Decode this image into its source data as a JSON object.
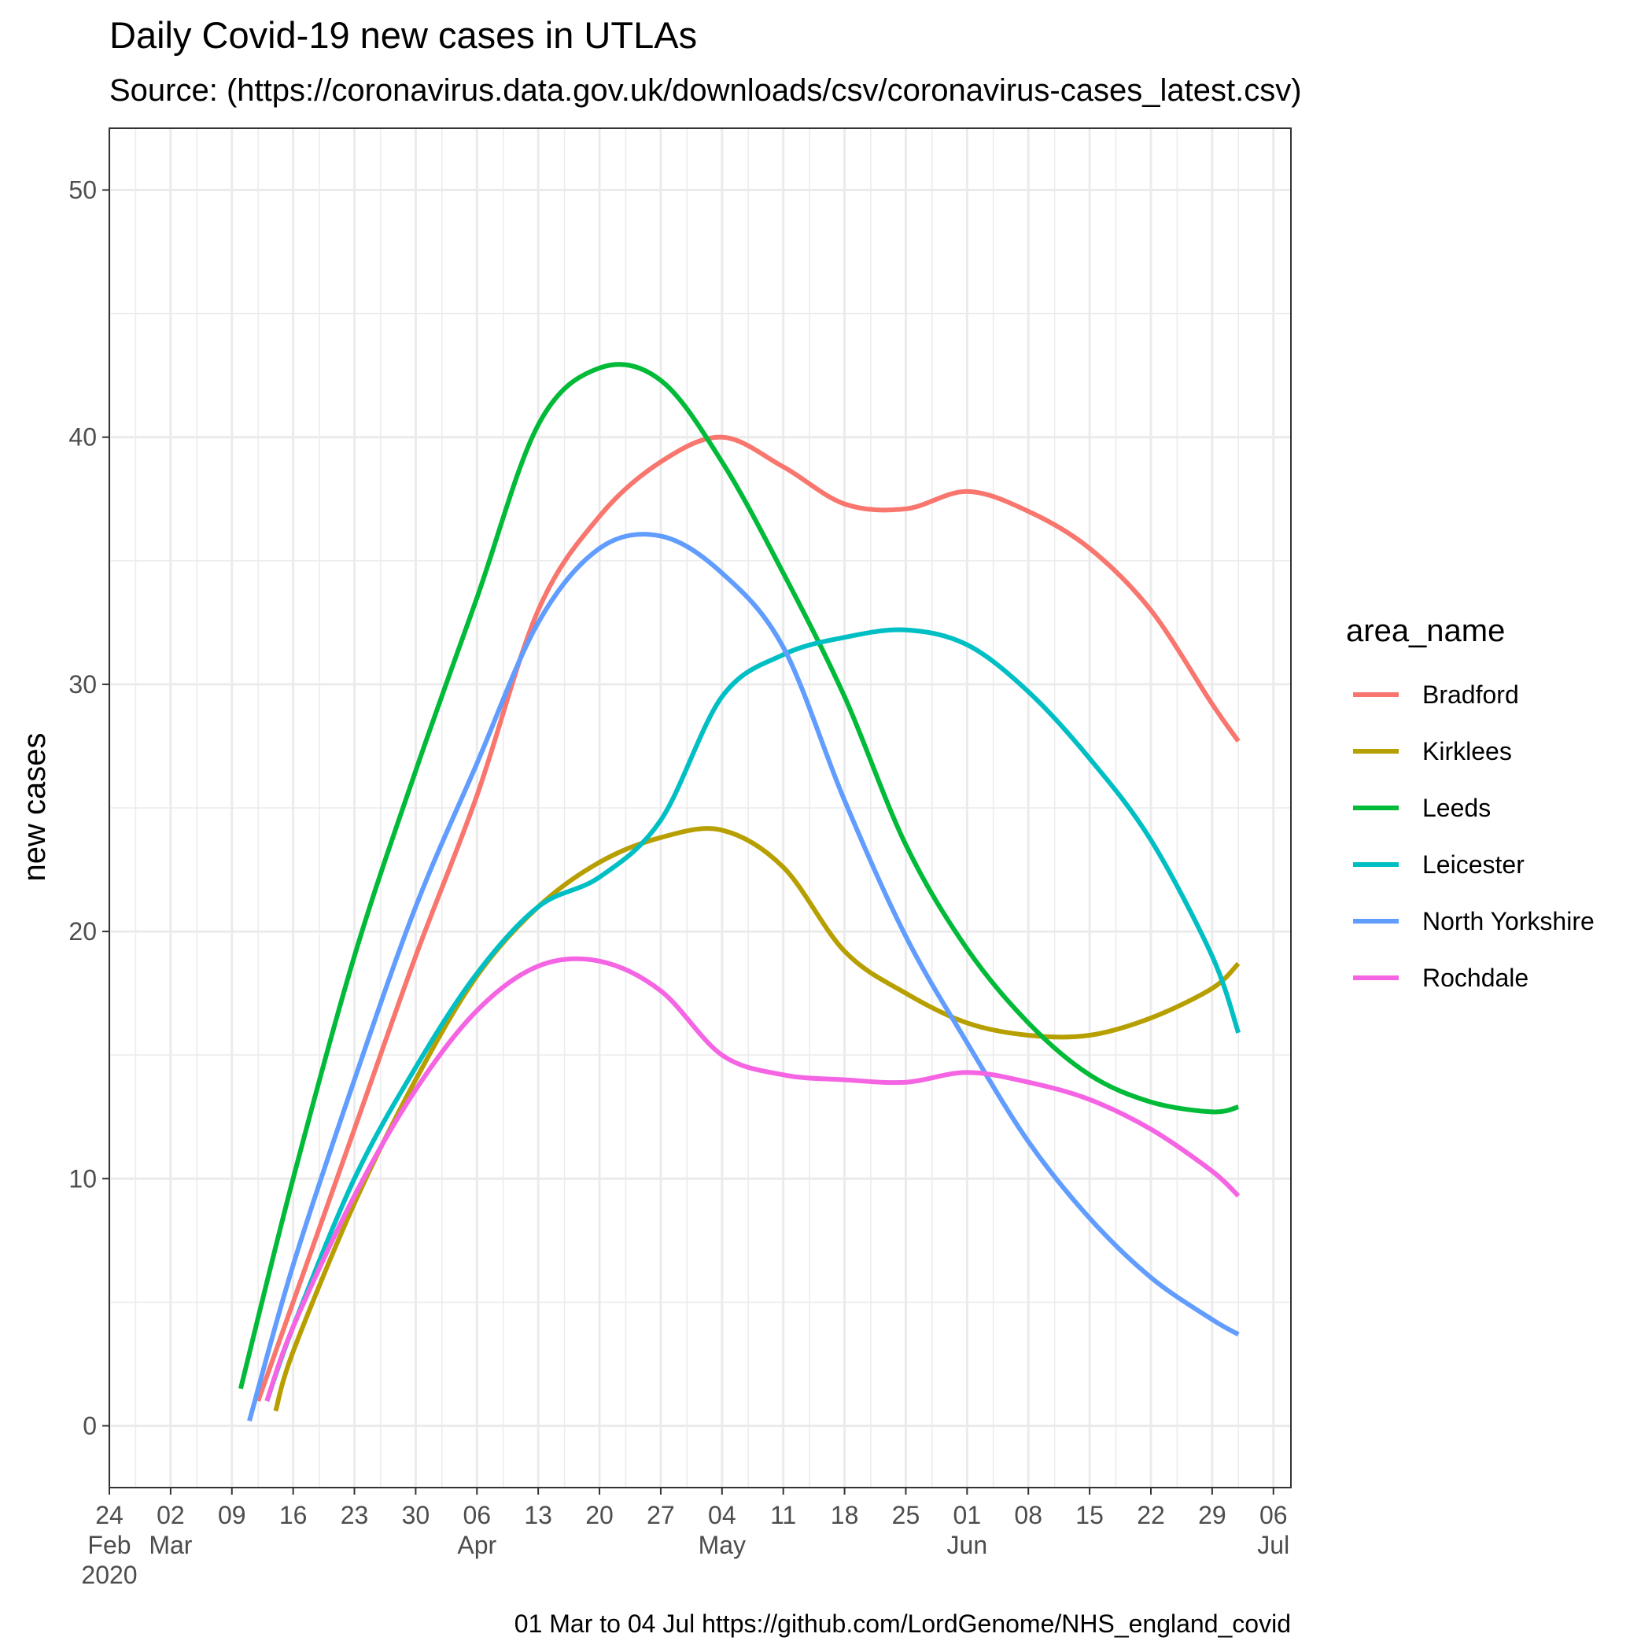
{
  "chart_data": {
    "type": "line",
    "title": "Daily Covid-19 new cases in UTLAs",
    "subtitle": "Source: (https://coronavirus.data.gov.uk/downloads/csv/coronavirus-cases_latest.csv)",
    "caption": "01 Mar to 04 Jul https://github.com/LordGenome/NHS_england_covid",
    "xlabel": "",
    "ylabel": "new cases",
    "xlim": [
      "2020-02-24",
      "2020-07-08"
    ],
    "ylim": [
      -2.5,
      52.5
    ],
    "y_ticks": [
      0,
      10,
      20,
      30,
      40,
      50
    ],
    "x_ticks": [
      {
        "date": "2020-02-24",
        "label": "24",
        "month": "Feb",
        "year": "2020"
      },
      {
        "date": "2020-03-02",
        "label": "02",
        "month": "Mar"
      },
      {
        "date": "2020-03-09",
        "label": "09"
      },
      {
        "date": "2020-03-16",
        "label": "16"
      },
      {
        "date": "2020-03-23",
        "label": "23"
      },
      {
        "date": "2020-03-30",
        "label": "30"
      },
      {
        "date": "2020-04-06",
        "label": "06",
        "month": "Apr"
      },
      {
        "date": "2020-04-13",
        "label": "13"
      },
      {
        "date": "2020-04-20",
        "label": "20"
      },
      {
        "date": "2020-04-27",
        "label": "27"
      },
      {
        "date": "2020-05-04",
        "label": "04",
        "month": "May"
      },
      {
        "date": "2020-05-11",
        "label": "11"
      },
      {
        "date": "2020-05-18",
        "label": "18"
      },
      {
        "date": "2020-05-25",
        "label": "25"
      },
      {
        "date": "2020-06-01",
        "label": "01",
        "month": "Jun"
      },
      {
        "date": "2020-06-08",
        "label": "08"
      },
      {
        "date": "2020-06-15",
        "label": "15"
      },
      {
        "date": "2020-06-22",
        "label": "22"
      },
      {
        "date": "2020-06-29",
        "label": "29"
      },
      {
        "date": "2020-07-06",
        "label": "06",
        "month": "Jul"
      }
    ],
    "grid": true,
    "legend": {
      "title": "area_name",
      "position": "right"
    },
    "series": [
      {
        "name": "Bradford",
        "color": "#F8766D",
        "points": [
          [
            "2020-03-12",
            1
          ],
          [
            "2020-03-16",
            5
          ],
          [
            "2020-03-23",
            12
          ],
          [
            "2020-03-30",
            19
          ],
          [
            "2020-04-06",
            25.5
          ],
          [
            "2020-04-13",
            33
          ],
          [
            "2020-04-20",
            36.8
          ],
          [
            "2020-04-27",
            39
          ],
          [
            "2020-05-04",
            40
          ],
          [
            "2020-05-11",
            38.8
          ],
          [
            "2020-05-18",
            37.3
          ],
          [
            "2020-05-25",
            37.1
          ],
          [
            "2020-06-01",
            37.8
          ],
          [
            "2020-06-08",
            37
          ],
          [
            "2020-06-15",
            35.5
          ],
          [
            "2020-06-22",
            33
          ],
          [
            "2020-06-29",
            29.2
          ],
          [
            "2020-07-02",
            27.7
          ]
        ]
      },
      {
        "name": "Kirklees",
        "color": "#B79F00",
        "points": [
          [
            "2020-03-14",
            0.6
          ],
          [
            "2020-03-16",
            3
          ],
          [
            "2020-03-23",
            9
          ],
          [
            "2020-03-30",
            14
          ],
          [
            "2020-04-06",
            18.2
          ],
          [
            "2020-04-13",
            21
          ],
          [
            "2020-04-20",
            22.8
          ],
          [
            "2020-04-27",
            23.8
          ],
          [
            "2020-05-04",
            24.1
          ],
          [
            "2020-05-11",
            22.6
          ],
          [
            "2020-05-18",
            19.2
          ],
          [
            "2020-05-25",
            17.5
          ],
          [
            "2020-06-01",
            16.3
          ],
          [
            "2020-06-08",
            15.8
          ],
          [
            "2020-06-15",
            15.8
          ],
          [
            "2020-06-22",
            16.5
          ],
          [
            "2020-06-29",
            17.7
          ],
          [
            "2020-07-02",
            18.7
          ]
        ]
      },
      {
        "name": "Leeds",
        "color": "#00BA38",
        "points": [
          [
            "2020-03-10",
            1.5
          ],
          [
            "2020-03-16",
            10
          ],
          [
            "2020-03-23",
            19
          ],
          [
            "2020-03-30",
            26.5
          ],
          [
            "2020-04-06",
            33.5
          ],
          [
            "2020-04-13",
            40.5
          ],
          [
            "2020-04-20",
            42.8
          ],
          [
            "2020-04-27",
            42.3
          ],
          [
            "2020-05-04",
            39
          ],
          [
            "2020-05-11",
            34.5
          ],
          [
            "2020-05-18",
            29.5
          ],
          [
            "2020-05-25",
            23.5
          ],
          [
            "2020-06-01",
            19.3
          ],
          [
            "2020-06-08",
            16.3
          ],
          [
            "2020-06-15",
            14.2
          ],
          [
            "2020-06-22",
            13.1
          ],
          [
            "2020-06-29",
            12.7
          ],
          [
            "2020-07-02",
            12.9
          ]
        ]
      },
      {
        "name": "Leicester",
        "color": "#00BFC4",
        "points": [
          [
            "2020-03-13",
            1
          ],
          [
            "2020-03-16",
            4
          ],
          [
            "2020-03-23",
            10
          ],
          [
            "2020-03-30",
            14.5
          ],
          [
            "2020-04-06",
            18.3
          ],
          [
            "2020-04-13",
            21
          ],
          [
            "2020-04-20",
            22.2
          ],
          [
            "2020-04-27",
            24.5
          ],
          [
            "2020-05-04",
            29.5
          ],
          [
            "2020-05-11",
            31.2
          ],
          [
            "2020-05-18",
            31.9
          ],
          [
            "2020-05-25",
            32.2
          ],
          [
            "2020-06-01",
            31.6
          ],
          [
            "2020-06-08",
            29.7
          ],
          [
            "2020-06-15",
            27
          ],
          [
            "2020-06-22",
            23.7
          ],
          [
            "2020-06-29",
            19
          ],
          [
            "2020-07-02",
            15.9
          ]
        ]
      },
      {
        "name": "North Yorkshire",
        "color": "#619CFF",
        "points": [
          [
            "2020-03-11",
            0.2
          ],
          [
            "2020-03-16",
            6.5
          ],
          [
            "2020-03-23",
            14
          ],
          [
            "2020-03-30",
            21
          ],
          [
            "2020-04-06",
            26.8
          ],
          [
            "2020-04-13",
            32.5
          ],
          [
            "2020-04-20",
            35.5
          ],
          [
            "2020-04-27",
            36
          ],
          [
            "2020-05-04",
            34.5
          ],
          [
            "2020-05-11",
            31.5
          ],
          [
            "2020-05-18",
            25.3
          ],
          [
            "2020-05-25",
            19.8
          ],
          [
            "2020-06-01",
            15.5
          ],
          [
            "2020-06-08",
            11.5
          ],
          [
            "2020-06-15",
            8.4
          ],
          [
            "2020-06-22",
            6
          ],
          [
            "2020-06-29",
            4.3
          ],
          [
            "2020-07-02",
            3.7
          ]
        ]
      },
      {
        "name": "Rochdale",
        "color": "#F564E3",
        "points": [
          [
            "2020-03-13",
            1
          ],
          [
            "2020-03-16",
            4
          ],
          [
            "2020-03-23",
            9.3
          ],
          [
            "2020-03-30",
            13.6
          ],
          [
            "2020-04-06",
            16.8
          ],
          [
            "2020-04-13",
            18.6
          ],
          [
            "2020-04-20",
            18.8
          ],
          [
            "2020-04-27",
            17.6
          ],
          [
            "2020-05-04",
            15
          ],
          [
            "2020-05-11",
            14.2
          ],
          [
            "2020-05-18",
            14
          ],
          [
            "2020-05-25",
            13.9
          ],
          [
            "2020-06-01",
            14.3
          ],
          [
            "2020-06-08",
            13.9
          ],
          [
            "2020-06-15",
            13.2
          ],
          [
            "2020-06-22",
            12
          ],
          [
            "2020-06-29",
            10.3
          ],
          [
            "2020-07-02",
            9.3
          ]
        ]
      }
    ]
  }
}
